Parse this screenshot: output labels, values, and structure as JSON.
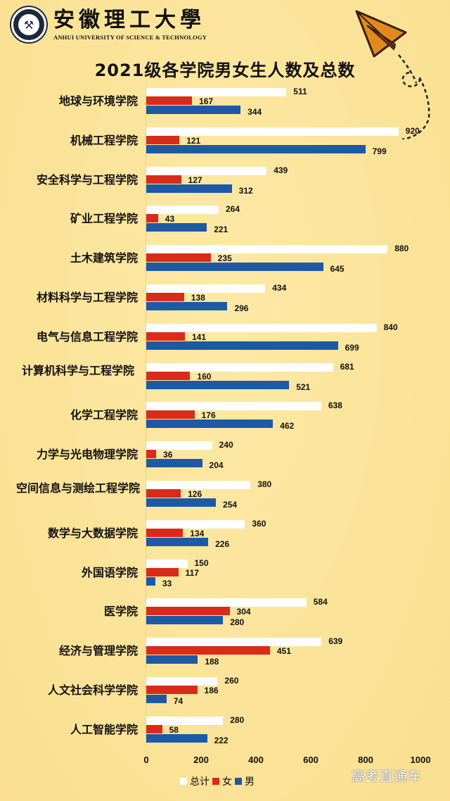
{
  "header": {
    "university_cn": "安徽理工大學",
    "university_en": "ANHUI UNIVERSITY OF SCIENCE & TECHNOLOGY",
    "logo_icon": "university-seal-icon"
  },
  "watermark": "高考直通车",
  "chart_data": {
    "type": "bar",
    "orientation": "horizontal",
    "title": "2021级各学院男女生人数及总数",
    "xlabel": "",
    "ylabel": "",
    "xlim": [
      0,
      1000
    ],
    "x_ticks": [
      "0",
      "200",
      "400",
      "600",
      "800",
      "1000"
    ],
    "grid": false,
    "legend_position": "bottom",
    "colors": {
      "总计": "#ffffff",
      "女": "#d92b1a",
      "男": "#1d5aa6"
    },
    "categories": [
      "地球与环境学院",
      "机械工程学院",
      "安全科学与工程学院",
      "矿业工程学院",
      "土木建筑学院",
      "材料科学与工程学院",
      "电气与信息工程学院",
      "计算机科学与工程学院",
      "化学工程学院",
      "力学与光电物理学院",
      "空间信息与测绘工程学院",
      "数学与大数据学院",
      "外国语学院",
      "医学院",
      "经济与管理学院",
      "人文社会科学学院",
      "人工智能学院"
    ],
    "series": [
      {
        "name": "总计",
        "values": [
          511,
          920,
          439,
          264,
          880,
          434,
          840,
          681,
          638,
          240,
          380,
          360,
          150,
          584,
          639,
          260,
          280
        ]
      },
      {
        "name": "女",
        "values": [
          167,
          121,
          127,
          43,
          235,
          138,
          141,
          160,
          176,
          36,
          126,
          134,
          117,
          304,
          451,
          186,
          58
        ]
      },
      {
        "name": "男",
        "values": [
          344,
          799,
          312,
          221,
          645,
          296,
          699,
          521,
          462,
          204,
          254,
          226,
          33,
          280,
          188,
          74,
          222
        ]
      }
    ],
    "legend": [
      "总计",
      "女",
      "男"
    ]
  }
}
